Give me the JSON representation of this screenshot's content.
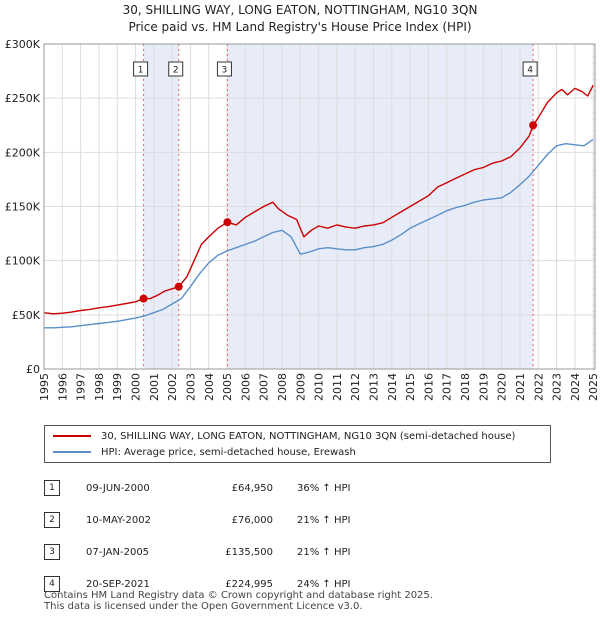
{
  "header": {
    "title_line1": "30, SHILLING WAY, LONG EATON, NOTTINGHAM, NG10 3QN",
    "title_line2": "Price paid vs. HM Land Registry's House Price Index (HPI)"
  },
  "chart_data": {
    "type": "line",
    "title": "30, SHILLING WAY, LONG EATON, NOTTINGHAM, NG10 3QN",
    "subtitle": "Price paid vs. HM Land Registry's House Price Index (HPI)",
    "xlabel": "",
    "ylabel": "",
    "xlim": [
      1995,
      2025.1
    ],
    "ylim": [
      0,
      300000
    ],
    "y_ticks": [
      {
        "value": 0,
        "label": "£0"
      },
      {
        "value": 50000,
        "label": "£50K"
      },
      {
        "value": 100000,
        "label": "£100K"
      },
      {
        "value": 150000,
        "label": "£150K"
      },
      {
        "value": 200000,
        "label": "£200K"
      },
      {
        "value": 250000,
        "label": "£250K"
      },
      {
        "value": 300000,
        "label": "£300K"
      }
    ],
    "x_ticks": [
      "1995",
      "1996",
      "1997",
      "1998",
      "1999",
      "2000",
      "2001",
      "2002",
      "2003",
      "2004",
      "2005",
      "2006",
      "2007",
      "2008",
      "2009",
      "2010",
      "2011",
      "2012",
      "2013",
      "2014",
      "2015",
      "2016",
      "2017",
      "2018",
      "2019",
      "2020",
      "2021",
      "2022",
      "2023",
      "2024",
      "2025"
    ],
    "grid": true,
    "colors": {
      "property": "#cc0000",
      "hpi": "#5b8fc9",
      "shade": "#e8ecf8",
      "vline": "#e06666"
    },
    "series": [
      {
        "name": "30, SHILLING WAY, LONG EATON, NOTTINGHAM, NG10 3QN (semi-detached house)",
        "x": [
          1995.0,
          1995.5,
          1996.0,
          1996.5,
          1997.0,
          1997.5,
          1998.0,
          1998.5,
          1999.0,
          1999.5,
          2000.0,
          2000.44,
          2000.8,
          2001.2,
          2001.6,
          2002.0,
          2002.36,
          2002.8,
          2003.2,
          2003.6,
          2004.0,
          2004.5,
          2005.02,
          2005.5,
          2006.0,
          2006.5,
          2007.0,
          2007.5,
          2007.8,
          2008.3,
          2008.8,
          2009.2,
          2009.6,
          2010.0,
          2010.5,
          2011.0,
          2011.5,
          2012.0,
          2012.5,
          2013.0,
          2013.5,
          2014.0,
          2014.5,
          2015.0,
          2015.5,
          2016.0,
          2016.5,
          2017.0,
          2017.5,
          2018.0,
          2018.5,
          2019.0,
          2019.5,
          2020.0,
          2020.5,
          2021.0,
          2021.5,
          2021.72,
          2022.0,
          2022.5,
          2023.0,
          2023.3,
          2023.6,
          2024.0,
          2024.4,
          2024.7,
          2025.0
        ],
        "values": [
          52000,
          51000,
          51500,
          52500,
          54000,
          55000,
          56500,
          57500,
          59000,
          60500,
          62000,
          64950,
          65000,
          68000,
          72000,
          74000,
          76000,
          85000,
          100000,
          115000,
          122000,
          130000,
          135500,
          133000,
          140000,
          145000,
          150000,
          154000,
          148000,
          142000,
          138000,
          122000,
          128000,
          132000,
          130000,
          133000,
          131000,
          130000,
          132000,
          133000,
          135000,
          140000,
          145000,
          150000,
          155000,
          160000,
          168000,
          172000,
          176000,
          180000,
          184000,
          186000,
          190000,
          192000,
          196000,
          204000,
          215000,
          224995,
          232000,
          246000,
          255000,
          258000,
          253000,
          259000,
          256000,
          252000,
          262000
        ]
      },
      {
        "name": "HPI: Average price, semi-detached house, Erewash",
        "x": [
          1995.0,
          1995.5,
          1996.0,
          1996.5,
          1997.0,
          1997.5,
          1998.0,
          1998.5,
          1999.0,
          1999.5,
          2000.0,
          2000.5,
          2001.0,
          2001.5,
          2002.0,
          2002.5,
          2003.0,
          2003.5,
          2004.0,
          2004.5,
          2005.0,
          2005.5,
          2006.0,
          2006.5,
          2007.0,
          2007.5,
          2008.0,
          2008.5,
          2009.0,
          2009.5,
          2010.0,
          2010.5,
          2011.0,
          2011.5,
          2012.0,
          2012.5,
          2013.0,
          2013.5,
          2014.0,
          2014.5,
          2015.0,
          2015.5,
          2016.0,
          2016.5,
          2017.0,
          2017.5,
          2018.0,
          2018.5,
          2019.0,
          2019.5,
          2020.0,
          2020.5,
          2021.0,
          2021.5,
          2022.0,
          2022.5,
          2023.0,
          2023.5,
          2024.0,
          2024.5,
          2025.0
        ],
        "values": [
          38000,
          38000,
          38500,
          39000,
          40000,
          41000,
          42000,
          43000,
          44000,
          45500,
          47000,
          49000,
          52000,
          55000,
          60000,
          65000,
          76000,
          88000,
          98000,
          105000,
          109000,
          112000,
          115000,
          118000,
          122000,
          126000,
          128000,
          122000,
          106000,
          108000,
          111000,
          112000,
          111000,
          110000,
          110000,
          112000,
          113000,
          115000,
          119000,
          124000,
          130000,
          134000,
          138000,
          142000,
          146000,
          149000,
          151000,
          154000,
          156000,
          157000,
          158000,
          163000,
          170000,
          178000,
          188000,
          198000,
          206000,
          208000,
          207000,
          206000,
          212000
        ]
      }
    ],
    "sales": [
      {
        "label": "1",
        "x": 2000.44,
        "value": 64950
      },
      {
        "label": "2",
        "x": 2002.36,
        "value": 76000
      },
      {
        "label": "3",
        "x": 2005.02,
        "value": 135500
      },
      {
        "label": "4",
        "x": 2021.72,
        "value": 224995
      }
    ],
    "shaded_ranges": [
      [
        2000.44,
        2002.36
      ],
      [
        2005.02,
        2021.72
      ]
    ],
    "hatch_from": 2025.0
  },
  "legend": {
    "property_label": "30, SHILLING WAY, LONG EATON, NOTTINGHAM, NG10 3QN (semi-detached house)",
    "hpi_label": "HPI: Average price, semi-detached house, Erewash"
  },
  "sales_table": [
    {
      "num": "1",
      "date": "09-JUN-2000",
      "price": "£64,950",
      "hpi": "36% ↑ HPI"
    },
    {
      "num": "2",
      "date": "10-MAY-2002",
      "price": "£76,000",
      "hpi": "21% ↑ HPI"
    },
    {
      "num": "3",
      "date": "07-JAN-2005",
      "price": "£135,500",
      "hpi": "21% ↑ HPI"
    },
    {
      "num": "4",
      "date": "20-SEP-2021",
      "price": "£224,995",
      "hpi": "24% ↑ HPI"
    }
  ],
  "footer": {
    "line1": "Contains HM Land Registry data © Crown copyright and database right 2025.",
    "line2": "This data is licensed under the Open Government Licence v3.0."
  }
}
